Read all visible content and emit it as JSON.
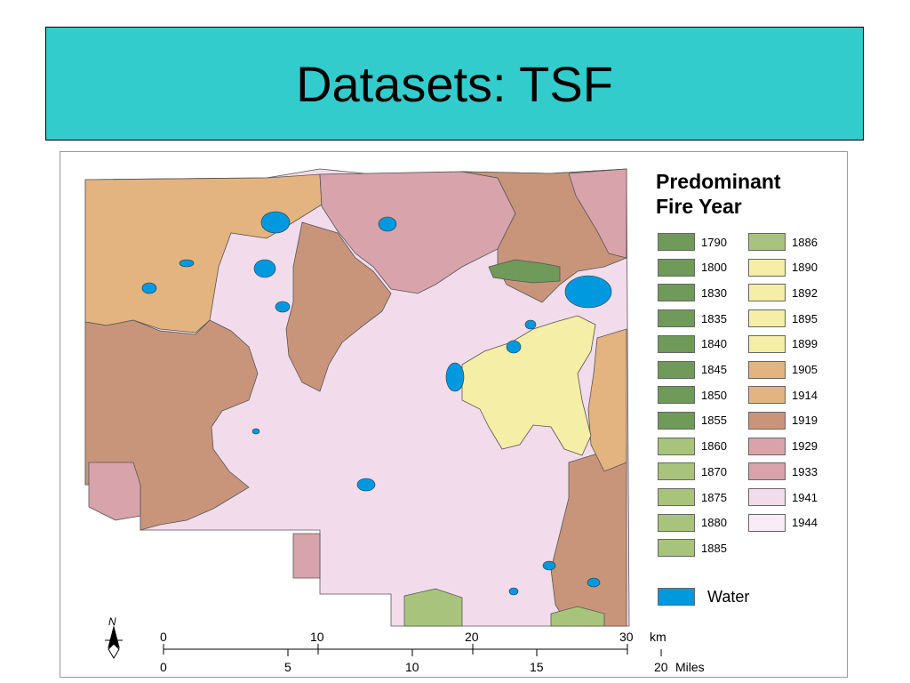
{
  "slide": {
    "title": "Datasets: TSF"
  },
  "legend": {
    "title_line1": "Predominant",
    "title_line2": "Fire Year",
    "items_col1": [
      {
        "year": "1790",
        "color": "#6f9a5a"
      },
      {
        "year": "1800",
        "color": "#6f9a5a"
      },
      {
        "year": "1830",
        "color": "#6f9a5a"
      },
      {
        "year": "1835",
        "color": "#6f9a5a"
      },
      {
        "year": "1840",
        "color": "#6f9a5a"
      },
      {
        "year": "1845",
        "color": "#6f9a5a"
      },
      {
        "year": "1850",
        "color": "#6f9a5a"
      },
      {
        "year": "1855",
        "color": "#6f9a5a"
      },
      {
        "year": "1860",
        "color": "#a8c47c"
      },
      {
        "year": "1870",
        "color": "#a8c47c"
      },
      {
        "year": "1875",
        "color": "#a8c47c"
      },
      {
        "year": "1880",
        "color": "#a8c47c"
      },
      {
        "year": "1885",
        "color": "#a8c47c"
      }
    ],
    "items_col2": [
      {
        "year": "1886",
        "color": "#a8c47c"
      },
      {
        "year": "1890",
        "color": "#f5eea6"
      },
      {
        "year": "1892",
        "color": "#f5eea6"
      },
      {
        "year": "1895",
        "color": "#f5eea6"
      },
      {
        "year": "1899",
        "color": "#f5eea6"
      },
      {
        "year": "1905",
        "color": "#e3b47f"
      },
      {
        "year": "1914",
        "color": "#e3b47f"
      },
      {
        "year": "1919",
        "color": "#c9957a"
      },
      {
        "year": "1929",
        "color": "#d9a3ab"
      },
      {
        "year": "1933",
        "color": "#d9a3ab"
      },
      {
        "year": "1941",
        "color": "#f2dcec"
      },
      {
        "year": "1944",
        "color": "#f9ecf7"
      }
    ],
    "water": {
      "label": "Water",
      "color": "#0099e0"
    }
  },
  "scale": {
    "km_ticks": [
      "0",
      "10",
      "20",
      "30"
    ],
    "km_unit": "km",
    "mile_ticks": [
      "0",
      "5",
      "10",
      "15",
      "20"
    ],
    "mile_unit": "Miles"
  },
  "north_arrow": {
    "label": "N"
  },
  "colors": {
    "title_bg": "#33cccc",
    "pink_1941": "#f2dcec",
    "brown_1919": "#c9957a",
    "tan_1905": "#e3b47f",
    "rose_1929": "#d9a3ab",
    "yellow_1890": "#f5eea6",
    "green_1800": "#6f9a5a",
    "lightgreen_1880": "#a8c47c",
    "water": "#0099e0"
  }
}
